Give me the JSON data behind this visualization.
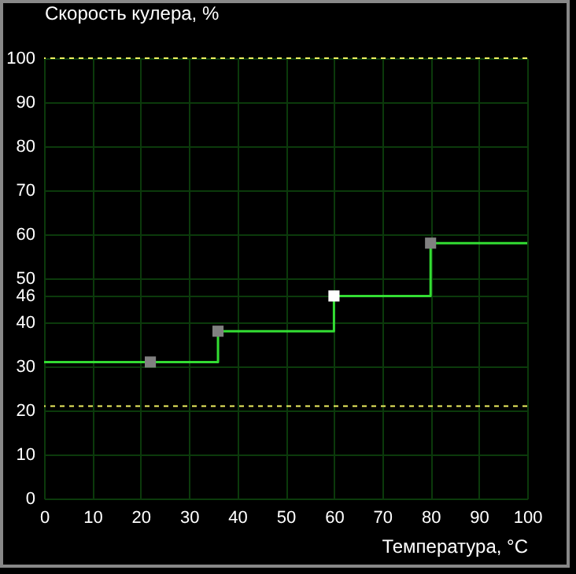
{
  "chart_data": {
    "type": "step",
    "xlabel": "Температура, °C",
    "ylabel": "Скорость кулера, %",
    "series": [
      {
        "color": "#33dd33",
        "x": [
          0,
          22,
          36,
          60,
          80,
          100
        ],
        "values": [
          31,
          31,
          38,
          46,
          58,
          58
        ]
      },
      {
        "type": "scatter",
        "marker": "square",
        "colors": [
          "#808080",
          "#808080",
          "#ffffff",
          "#808080"
        ],
        "x": [
          22,
          36,
          60,
          80
        ],
        "values": [
          31,
          38,
          46,
          58
        ]
      }
    ],
    "xlim": [
      0,
      100
    ],
    "xticks": [
      0,
      10,
      20,
      30,
      40,
      50,
      60,
      70,
      80,
      90,
      100
    ],
    "ylim": [
      0,
      100
    ],
    "yticks": [
      0,
      10,
      20,
      30,
      40,
      46,
      50,
      60,
      70,
      80,
      90,
      100
    ],
    "ref_lines": [
      {
        "axis": "y",
        "value": 100,
        "color": "#f0f060",
        "line_style": "dashed"
      },
      {
        "axis": "y",
        "value": 21,
        "color": "#f0f060",
        "line_style": "dashed"
      }
    ],
    "grid": true
  }
}
